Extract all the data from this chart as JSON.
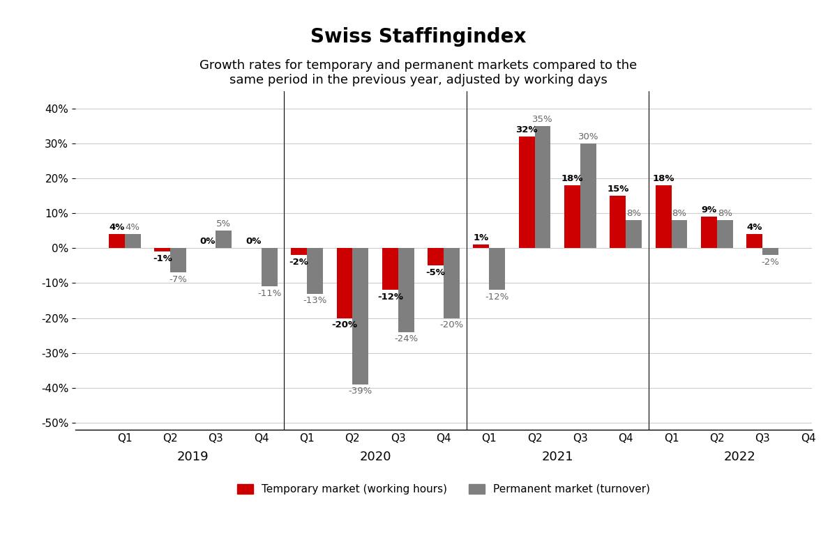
{
  "title": "Swiss Staffingindex",
  "subtitle": "Growth rates for temporary and permanent markets compared to the\nsame period in the previous year, adjusted by working days",
  "years": [
    "2019",
    "2020",
    "2021",
    "2022"
  ],
  "quarters": [
    "Q1",
    "Q2",
    "Q3",
    "Q4"
  ],
  "temporary": [
    4,
    -1,
    0,
    0,
    -2,
    -20,
    -12,
    -5,
    1,
    32,
    18,
    15,
    18,
    9,
    4,
    null
  ],
  "permanent": [
    4,
    -7,
    5,
    -11,
    -13,
    -39,
    -24,
    -20,
    -12,
    35,
    30,
    8,
    8,
    8,
    -2,
    null
  ],
  "temp_color": "#CC0000",
  "perm_color": "#7f7f7f",
  "bar_width": 0.35,
  "ylim": [
    -52,
    45
  ],
  "yticks": [
    -50,
    -40,
    -30,
    -20,
    -10,
    0,
    10,
    20,
    30,
    40
  ],
  "ytick_labels": [
    "-50%",
    "-40%",
    "-30%",
    "-20%",
    "-10%",
    "0%",
    "10%",
    "20%",
    "30%",
    "40%"
  ],
  "background_color": "#ffffff",
  "grid_color": "#cccccc",
  "title_fontsize": 20,
  "subtitle_fontsize": 13,
  "label_fontsize": 9.5,
  "temp_label": "Temporary market (working hours)",
  "perm_label": "Permanent market (turnover)"
}
